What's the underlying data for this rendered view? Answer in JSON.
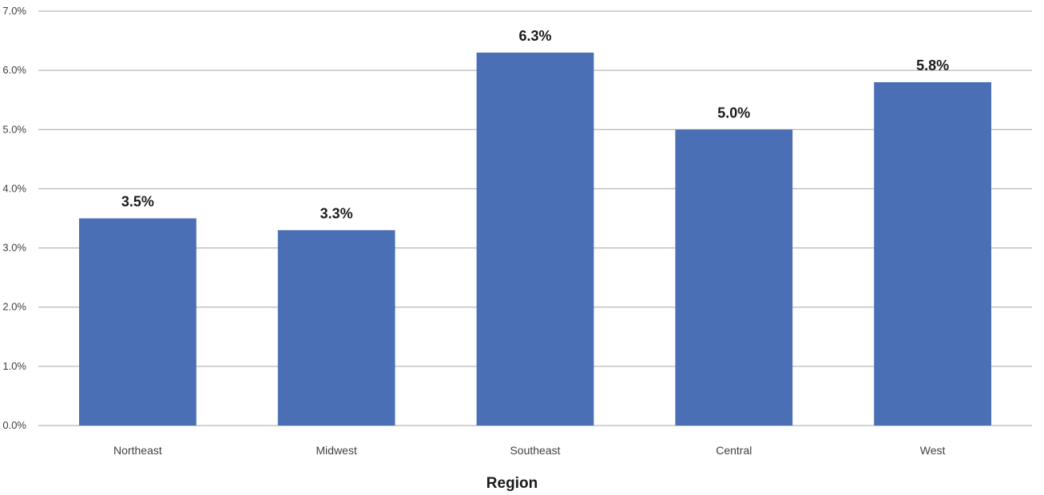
{
  "chart_data": {
    "type": "bar",
    "title": "",
    "xlabel": "Region",
    "ylabel": "",
    "categories": [
      "Northeast",
      "Midwest",
      "Southeast",
      "Central",
      "West"
    ],
    "values": [
      3.5,
      3.3,
      6.3,
      5.0,
      5.8
    ],
    "data_labels": [
      "3.5%",
      "3.3%",
      "6.3%",
      "5.0%",
      "5.8%"
    ],
    "ylim": [
      0,
      7
    ],
    "yticks": [
      0,
      1,
      2,
      3,
      4,
      5,
      6,
      7
    ],
    "ytick_labels": [
      "0.0%",
      "1.0%",
      "2.0%",
      "3.0%",
      "4.0%",
      "5.0%",
      "6.0%",
      "7.0%"
    ],
    "grid": true,
    "legend": "none",
    "colors": {
      "bar": "#4a6fb5",
      "grid": "#a6a6a6"
    }
  }
}
